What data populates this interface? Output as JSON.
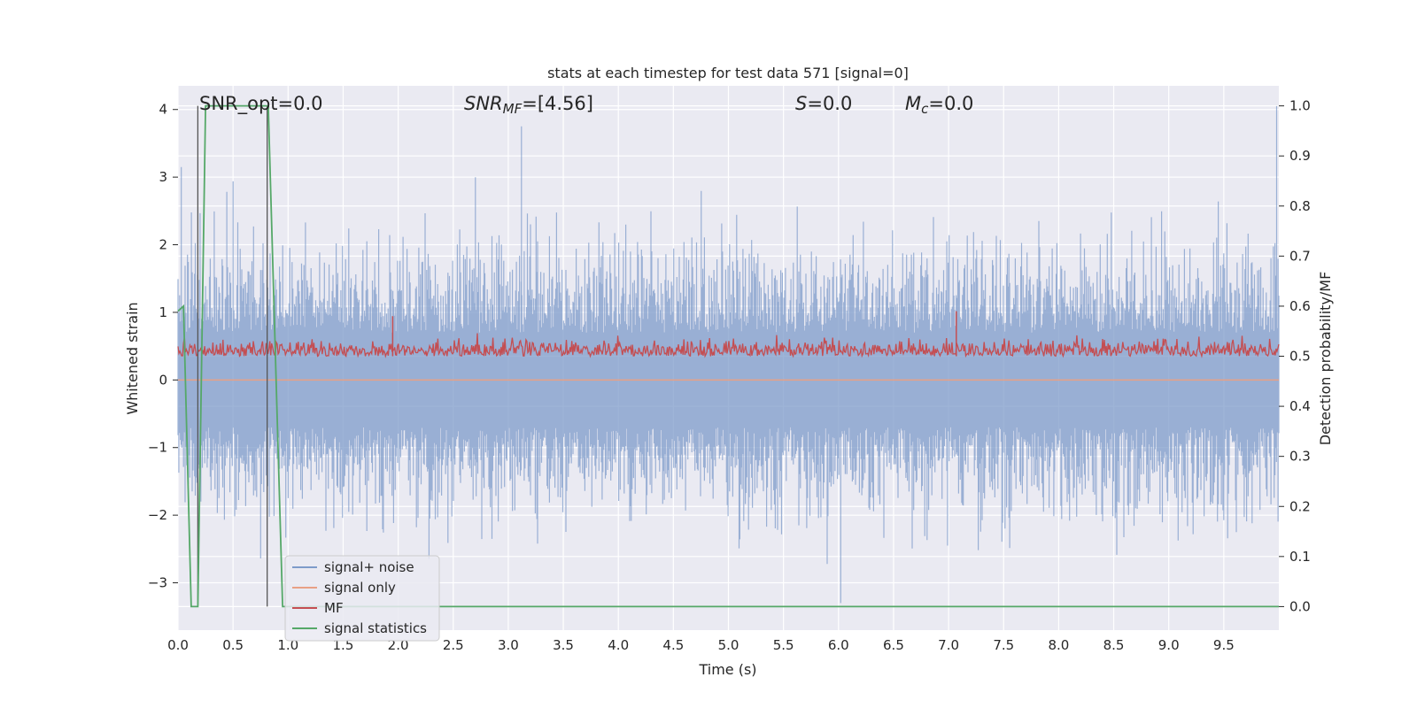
{
  "chart_data": {
    "type": "line",
    "title": "stats at each timestep for test data 571 [signal=0]",
    "xlabel": "Time (s)",
    "ylabel": "Whitened strain",
    "ylabel_right": "Detection probability/MF",
    "xlim": [
      0,
      10
    ],
    "ylim": [
      -3.7,
      4.35
    ],
    "ylim_right": [
      -0.047,
      1.04
    ],
    "x_ticks": [
      "0.0",
      "0.5",
      "1.0",
      "1.5",
      "2.0",
      "2.5",
      "3.0",
      "3.5",
      "4.0",
      "4.5",
      "5.0",
      "5.5",
      "6.0",
      "6.5",
      "7.0",
      "7.5",
      "8.0",
      "8.5",
      "9.0",
      "9.5"
    ],
    "y_ticks": [
      "4",
      "3",
      "2",
      "1",
      "0",
      "−1",
      "−2",
      "−3"
    ],
    "y_right_ticks": [
      "1.0",
      "0.9",
      "0.8",
      "0.7",
      "0.6",
      "0.5",
      "0.4",
      "0.3",
      "0.2",
      "0.1",
      "0.0"
    ],
    "grid": true,
    "legend_position": "lower-left",
    "annotations": {
      "snr_opt": "SNR_opt=0.0",
      "snr_mf_main": "SNR",
      "snr_mf_sub": "MF",
      "snr_mf_value": "=[4.56]",
      "s_main": "S",
      "s_value": "=0.0",
      "mc_main": "M",
      "mc_sub": "c",
      "mc_value": "=0.0"
    },
    "series": [
      {
        "name": "signal+ noise",
        "color": "#7e9bca",
        "axis": "left",
        "description_values": {
          "envelope_typical": [
            -1.8,
            1.8
          ],
          "peaks": [
            [
              0.03,
              3.15
            ],
            [
              3.12,
              3.75
            ],
            [
              6.02,
              -3.3
            ],
            [
              9.98,
              4.05
            ]
          ]
        }
      },
      {
        "name": "signal only",
        "color": "#e8a085",
        "axis": "left",
        "x": [
          0,
          10
        ],
        "y": [
          0.0,
          0.0
        ]
      },
      {
        "name": "MF",
        "color": "#c44e52",
        "axis": "right",
        "band": [
          0.5,
          0.55
        ],
        "peaks": [
          [
            1.95,
            0.58
          ],
          [
            7.07,
            0.59
          ]
        ]
      },
      {
        "name": "signal statistics",
        "color": "#55a868",
        "axis": "right",
        "x": [
          0.0,
          0.05,
          0.12,
          0.18,
          0.25,
          0.3,
          0.8,
          0.82,
          0.95,
          1.0,
          10.0
        ],
        "y": [
          0.59,
          0.6,
          0.0,
          0.0,
          1.0,
          1.0,
          1.0,
          1.0,
          0.0,
          0.0,
          0.0
        ]
      }
    ],
    "vertical_lines": [
      0.18,
      0.81
    ]
  }
}
